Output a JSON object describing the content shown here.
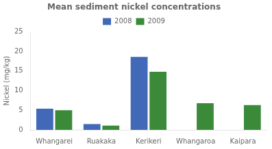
{
  "chart_data": {
    "type": "bar",
    "title": "Mean sediment nickel concentrations",
    "categories": [
      "Whangarei",
      "Ruakaka",
      "Kerikeri",
      "Whangaroa",
      "Kaipara"
    ],
    "series": [
      {
        "name": "2008",
        "color": "#4169b8",
        "values": [
          5.4,
          1.5,
          18.6,
          0.0,
          0.0
        ]
      },
      {
        "name": "2009",
        "color": "#3a8a3a",
        "values": [
          5.0,
          1.1,
          14.8,
          6.8,
          6.3
        ]
      }
    ],
    "ylabel": "Nickel (mg/kg)",
    "ylim": [
      0,
      25
    ],
    "yticks": [
      0,
      5,
      10,
      15,
      20,
      25
    ],
    "grid": false,
    "legend": "top"
  }
}
